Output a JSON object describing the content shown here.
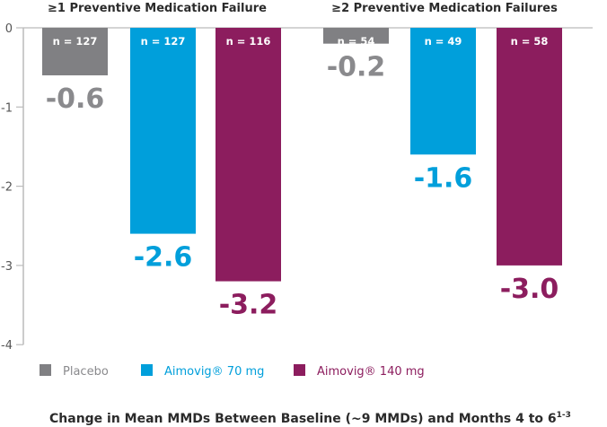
{
  "chart_data": {
    "type": "bar",
    "xlabel": "Change in Mean MMDs Between Baseline (~9 MMDs) and Months 4 to 6",
    "xlabel_superscript": "1-3",
    "ylim": [
      -4,
      0
    ],
    "yticks": [
      "0",
      "-1",
      "-2",
      "-3",
      "-4"
    ],
    "legend_placement": "bottom",
    "groups": [
      {
        "title": "≥1 Preventive Medication Failure",
        "bars": [
          {
            "series": 0,
            "value": -0.6,
            "label": "-0.6",
            "n": "n = 127"
          },
          {
            "series": 1,
            "value": -2.6,
            "label": "-2.6",
            "n": "n = 127"
          },
          {
            "series": 2,
            "value": -3.2,
            "label": "-3.2",
            "n": "n = 116"
          }
        ]
      },
      {
        "title": "≥2 Preventive Medication Failures",
        "bars": [
          {
            "series": 0,
            "value": -0.2,
            "label": "-0.2",
            "n": "n = 54"
          },
          {
            "series": 1,
            "value": -1.6,
            "label": "-1.6",
            "n": "n = 49"
          },
          {
            "series": 2,
            "value": -3.0,
            "label": "-3.0",
            "n": "n = 58"
          }
        ]
      }
    ],
    "series": [
      {
        "name": "Placebo",
        "color": "#808083",
        "label_color": "#8a8a8d"
      },
      {
        "name": "Aimovig® 70 mg",
        "color": "#009fdb",
        "label_color": "#009fdb"
      },
      {
        "name": "Aimovig® 140 mg",
        "color": "#8c1d5e",
        "label_color": "#8c1d5e"
      }
    ]
  }
}
